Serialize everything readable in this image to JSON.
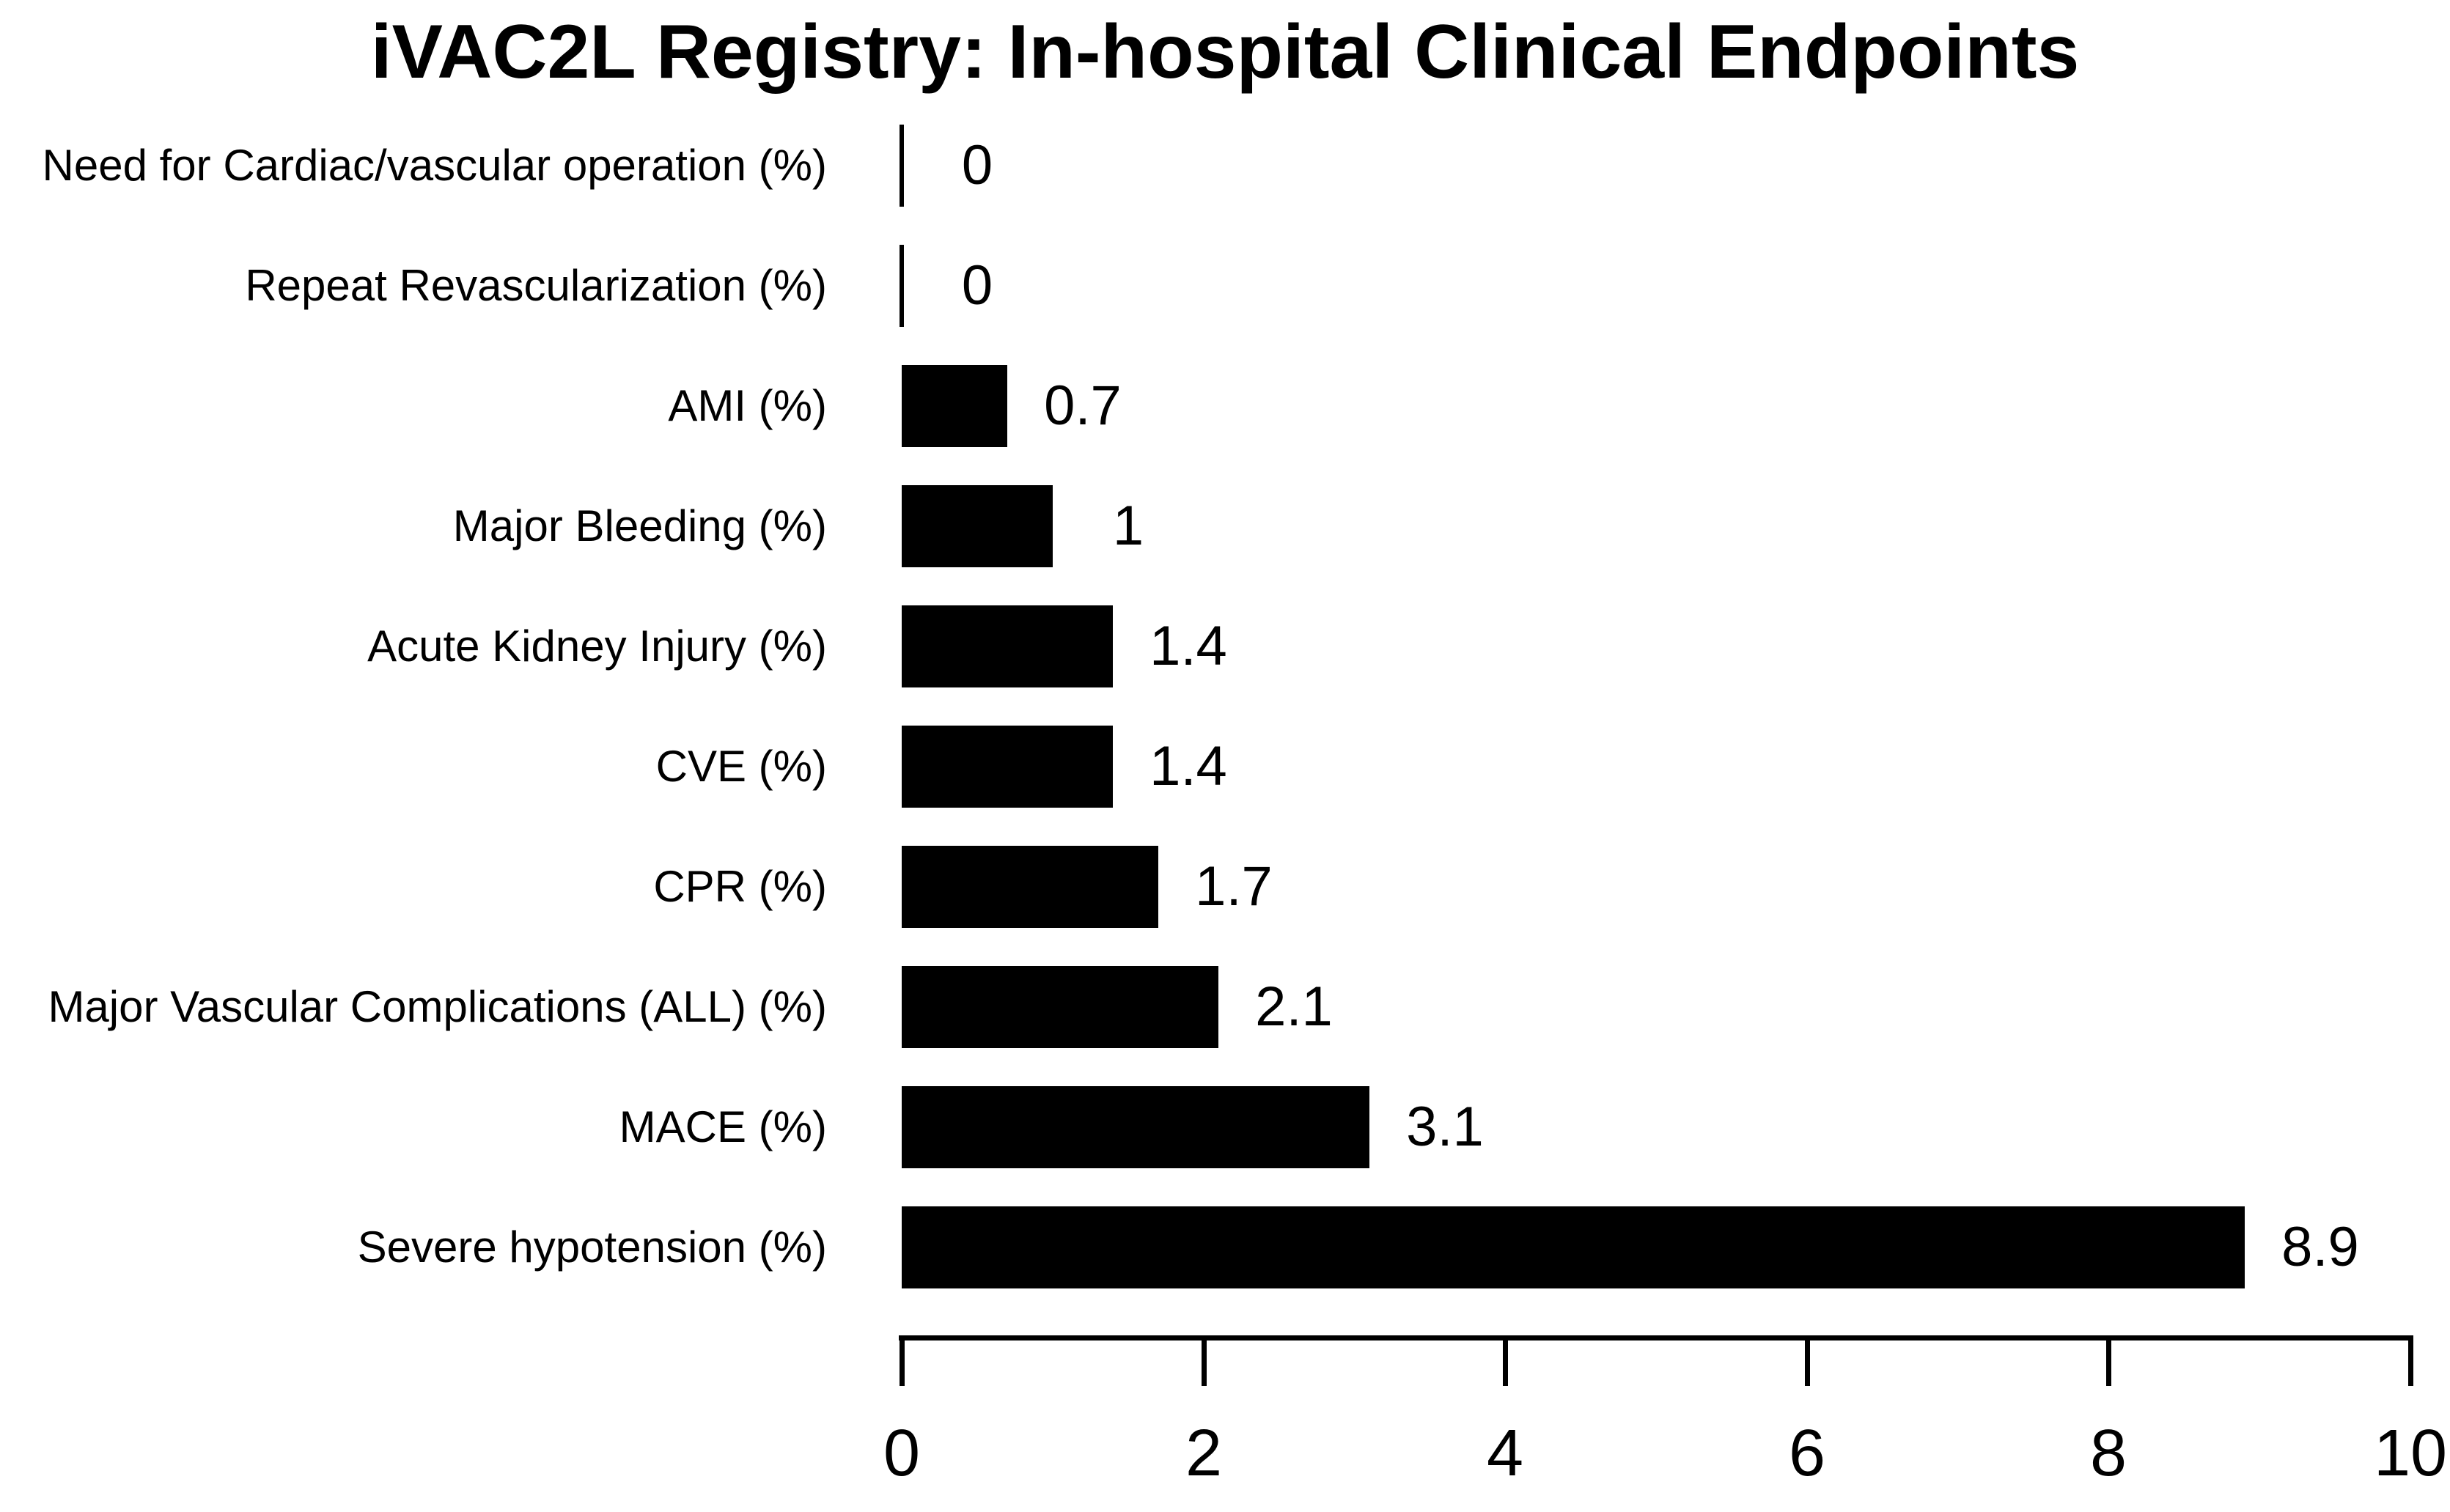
{
  "chart_data": {
    "type": "bar",
    "orientation": "horizontal",
    "title": "iVAC2L Registry: In-hospital Clinical Endpoints",
    "categories": [
      "Need for Cardiac/vascular operation (%)",
      "Repeat Revascularization (%)",
      "AMI (%)",
      "Major Bleeding (%)",
      "Acute Kidney Injury (%)",
      "CVE (%)",
      "CPR (%)",
      "Major Vascular Complications (ALL) (%)",
      "MACE (%)",
      "Severe hypotension (%)"
    ],
    "values": [
      0,
      0,
      0.7,
      1,
      1.4,
      1.4,
      1.7,
      2.1,
      3.1,
      8.9
    ],
    "value_labels": [
      "0",
      "0",
      "0.7",
      "1",
      "1.4",
      "1.4",
      "1.7",
      "2.1",
      "3.1",
      "8.9"
    ],
    "xlabel": "",
    "ylabel": "",
    "xlim": [
      0,
      10
    ],
    "x_ticks": [
      0,
      2,
      4,
      6,
      8,
      10
    ],
    "x_tick_labels": [
      "0",
      "2",
      "4",
      "6",
      "8",
      "10"
    ],
    "bar_color": "#000000",
    "text_color": "#000000",
    "background_color": "#ffffff",
    "grid": false,
    "legend": false
  }
}
